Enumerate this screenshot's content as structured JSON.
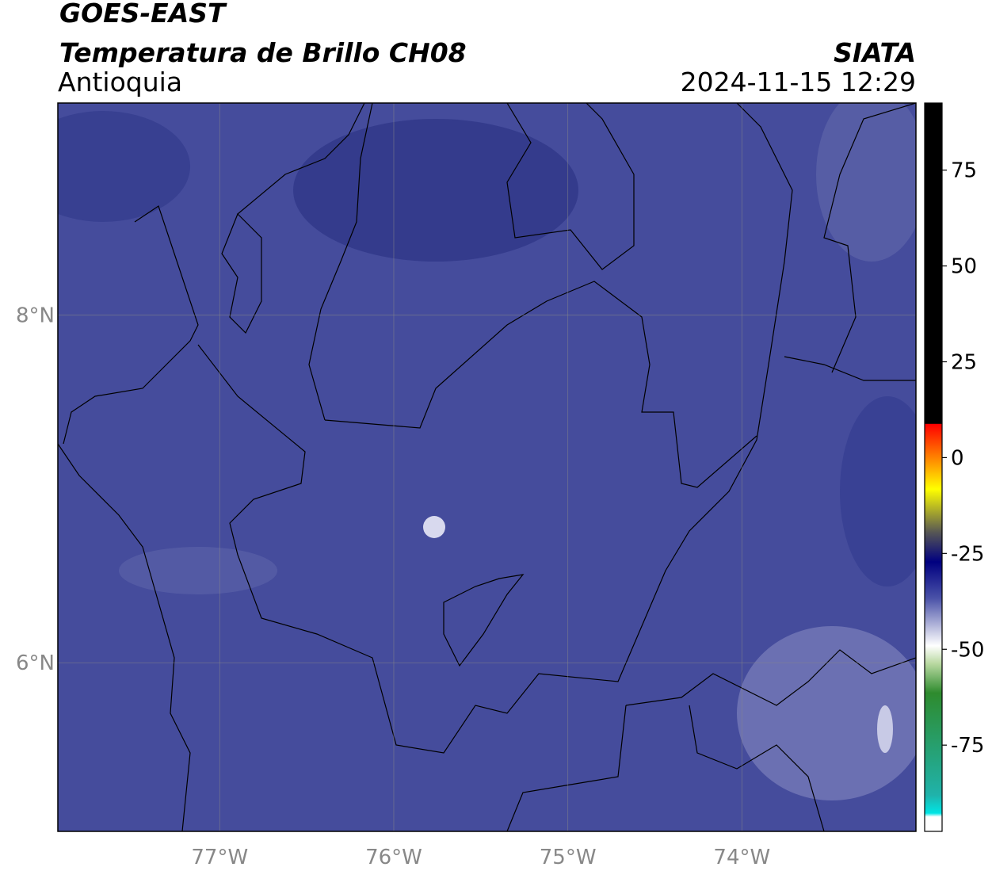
{
  "header": {
    "title": "GOES-EAST",
    "subtitle": "Temperatura de Brillo CH08",
    "region": "Antioquia",
    "source": "SIATA",
    "datetime": "2024-11-15 12:29"
  },
  "map": {
    "lonlim": [
      -77.93,
      -73.0
    ],
    "latlim": [
      5.03,
      9.22
    ],
    "xticks": [
      {
        "value": -77,
        "label": "77°W"
      },
      {
        "value": -76,
        "label": "76°W"
      },
      {
        "value": -75,
        "label": "75°W"
      },
      {
        "value": -74,
        "label": "74°W"
      }
    ],
    "yticks": [
      {
        "value": 8,
        "label": "8°N"
      },
      {
        "value": 6,
        "label": "6°N"
      }
    ],
    "grid": true
  },
  "colorbar": {
    "lim": [
      -97.5,
      92.5
    ],
    "ticks": [
      75,
      50,
      25,
      0,
      -25,
      -50,
      -75
    ]
  }
}
